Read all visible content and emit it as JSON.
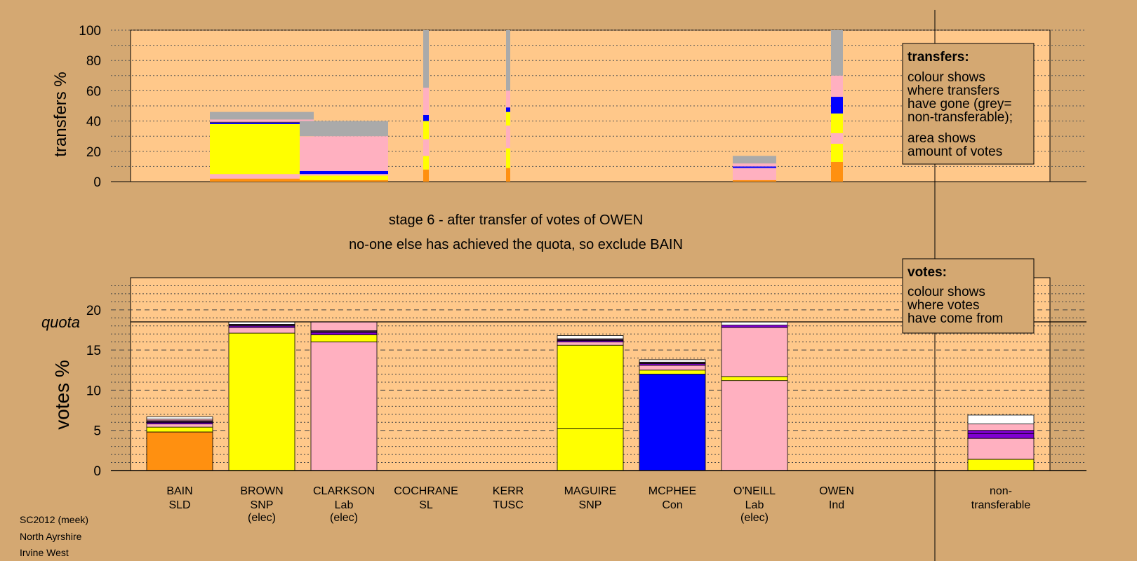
{
  "colors": {
    "background": "#d4a872",
    "panel": "#ffc88a",
    "SLD": "#ff9010",
    "SNP": "#ffff00",
    "Lab": "#ffb0c0",
    "Con": "#0000ff",
    "SL": "#8000d0",
    "TUSC": "#402040",
    "Ind": "#ffffff",
    "nontransferable": "#aaaaaa"
  },
  "stage_title": "stage 6 - after transfer of votes of OWEN",
  "stage_subtitle": "no-one else has achieved the quota, so exclude BAIN",
  "quota_label": "quota",
  "top_legend": {
    "title": "transfers:",
    "lines": [
      "colour shows",
      "where transfers",
      "have gone (grey=",
      "non-transferable);",
      "area shows",
      "amount of votes"
    ]
  },
  "bottom_legend": {
    "title": "votes:",
    "lines": [
      "colour shows",
      "where votes",
      "have come from"
    ]
  },
  "footer": [
    "SC2012 (meek)",
    "North Ayrshire",
    "Irvine West"
  ],
  "chart_data": [
    {
      "type": "bar",
      "name": "transfers",
      "ylabel": "transfers %",
      "ylim": [
        0,
        100
      ],
      "yticks": [
        0,
        20,
        40,
        60,
        80,
        100
      ],
      "grid": "dotted horizontal every 10",
      "legend_position": "top-right",
      "columns": [
        {
          "candidate": "BROWN",
          "segments": [
            {
              "party": "SLD",
              "value": 2
            },
            {
              "party": "Lab",
              "value": 3
            },
            {
              "party": "SNP",
              "value": 33
            },
            {
              "party": "Con",
              "value": 1
            },
            {
              "party": "TUSC",
              "value": 0.5
            },
            {
              "party": "Lab",
              "value": 1.5
            },
            {
              "party": "nontransferable",
              "value": 5
            }
          ]
        },
        {
          "candidate": "CLARKSON",
          "segments": [
            {
              "party": "SLD",
              "value": 1
            },
            {
              "party": "SNP",
              "value": 3
            },
            {
              "party": "Lab",
              "value": 1
            },
            {
              "party": "Con",
              "value": 2
            },
            {
              "party": "Lab",
              "value": 23
            },
            {
              "party": "nontransferable",
              "value": 10
            }
          ]
        },
        {
          "candidate": "COCHRANE",
          "segments": [
            {
              "party": "SLD",
              "value": 8
            },
            {
              "party": "SNP",
              "value": 9
            },
            {
              "party": "Lab",
              "value": 11
            },
            {
              "party": "SNP",
              "value": 12
            },
            {
              "party": "Con",
              "value": 4
            },
            {
              "party": "Lab",
              "value": 18
            },
            {
              "party": "nontransferable",
              "value": 38
            }
          ]
        },
        {
          "candidate": "KERR",
          "segments": [
            {
              "party": "SLD",
              "value": 9
            },
            {
              "party": "SNP",
              "value": 13
            },
            {
              "party": "Lab",
              "value": 15
            },
            {
              "party": "SNP",
              "value": 9
            },
            {
              "party": "Con",
              "value": 3
            },
            {
              "party": "Lab",
              "value": 11
            },
            {
              "party": "nontransferable",
              "value": 40
            }
          ]
        },
        {
          "candidate": "O'NEILL",
          "segments": [
            {
              "party": "SLD",
              "value": 1
            },
            {
              "party": "Lab",
              "value": 8
            },
            {
              "party": "Con",
              "value": 1
            },
            {
              "party": "Lab",
              "value": 2
            },
            {
              "party": "nontransferable",
              "value": 5
            }
          ]
        },
        {
          "candidate": "OWEN",
          "segments": [
            {
              "party": "SLD",
              "value": 13
            },
            {
              "party": "SNP",
              "value": 12
            },
            {
              "party": "Lab",
              "value": 7
            },
            {
              "party": "SNP",
              "value": 13
            },
            {
              "party": "Con",
              "value": 11
            },
            {
              "party": "Lab",
              "value": 14
            },
            {
              "party": "nontransferable",
              "value": 30
            }
          ]
        }
      ]
    },
    {
      "type": "bar",
      "name": "votes",
      "ylabel": "votes %",
      "ylim": [
        0,
        24
      ],
      "yticks": [
        0,
        5,
        10,
        15,
        20
      ],
      "quota": 18.5,
      "grid": "dashed every 5, dotted every 1",
      "legend_position": "top-right",
      "columns": [
        {
          "candidate": "BAIN",
          "party": "SLD",
          "status": "",
          "segments": [
            {
              "party": "SLD",
              "value": 4.8
            },
            {
              "party": "SNP",
              "value": 0.6
            },
            {
              "party": "Lab",
              "value": 0.4
            },
            {
              "party": "SL",
              "value": 0.2
            },
            {
              "party": "TUSC",
              "value": 0.2
            },
            {
              "party": "Lab",
              "value": 0.2
            },
            {
              "party": "Ind",
              "value": 0.3
            }
          ]
        },
        {
          "candidate": "BROWN",
          "party": "SNP",
          "status": "(elec)",
          "segments": [
            {
              "party": "SNP",
              "value": 17.1
            },
            {
              "party": "Lab",
              "value": 0.7
            },
            {
              "party": "SL",
              "value": 0.2
            },
            {
              "party": "TUSC",
              "value": 0.2
            },
            {
              "party": "Ind",
              "value": 0.3
            }
          ]
        },
        {
          "candidate": "CLARKSON",
          "party": "Lab",
          "status": "(elec)",
          "segments": [
            {
              "party": "Lab",
              "value": 16.0
            },
            {
              "party": "SNP",
              "value": 0.9
            },
            {
              "party": "SL",
              "value": 0.3
            },
            {
              "party": "TUSC",
              "value": 0.2
            },
            {
              "party": "Lab",
              "value": 1.1
            }
          ]
        },
        {
          "candidate": "COCHRANE",
          "party": "SL",
          "status": "",
          "segments": []
        },
        {
          "candidate": "KERR",
          "party": "TUSC",
          "status": "",
          "segments": []
        },
        {
          "candidate": "MAGUIRE",
          "party": "SNP",
          "status": "",
          "segments": [
            {
              "party": "SNP",
              "value": 5.2
            },
            {
              "party": "SNP",
              "value": 10.4
            },
            {
              "party": "Lab",
              "value": 0.4
            },
            {
              "party": "SL",
              "value": 0.2
            },
            {
              "party": "TUSC",
              "value": 0.2
            },
            {
              "party": "Ind",
              "value": 0.4
            }
          ]
        },
        {
          "candidate": "MCPHEE",
          "party": "Con",
          "status": "",
          "segments": [
            {
              "party": "Con",
              "value": 12.0
            },
            {
              "party": "SNP",
              "value": 0.5
            },
            {
              "party": "Lab",
              "value": 0.6
            },
            {
              "party": "SL",
              "value": 0.2
            },
            {
              "party": "TUSC",
              "value": 0.2
            },
            {
              "party": "Ind",
              "value": 0.3
            }
          ]
        },
        {
          "candidate": "O'NEILL",
          "party": "Lab",
          "status": "(elec)",
          "segments": [
            {
              "party": "Lab",
              "value": 11.2
            },
            {
              "party": "SNP",
              "value": 0.5
            },
            {
              "party": "Lab",
              "value": 6.1
            },
            {
              "party": "SL",
              "value": 0.3
            },
            {
              "party": "Ind",
              "value": 0.4
            }
          ]
        },
        {
          "candidate": "OWEN",
          "party": "Ind",
          "status": "",
          "segments": []
        },
        {
          "candidate": "non-",
          "party": "transferable",
          "status": "",
          "segments": [
            {
              "party": "SNP",
              "value": 1.4
            },
            {
              "party": "Lab",
              "value": 2.6
            },
            {
              "party": "SL",
              "value": 0.6
            },
            {
              "party": "SL",
              "value": 0.4
            },
            {
              "party": "Lab",
              "value": 0.8
            },
            {
              "party": "Ind",
              "value": 1.1
            }
          ]
        }
      ]
    }
  ]
}
